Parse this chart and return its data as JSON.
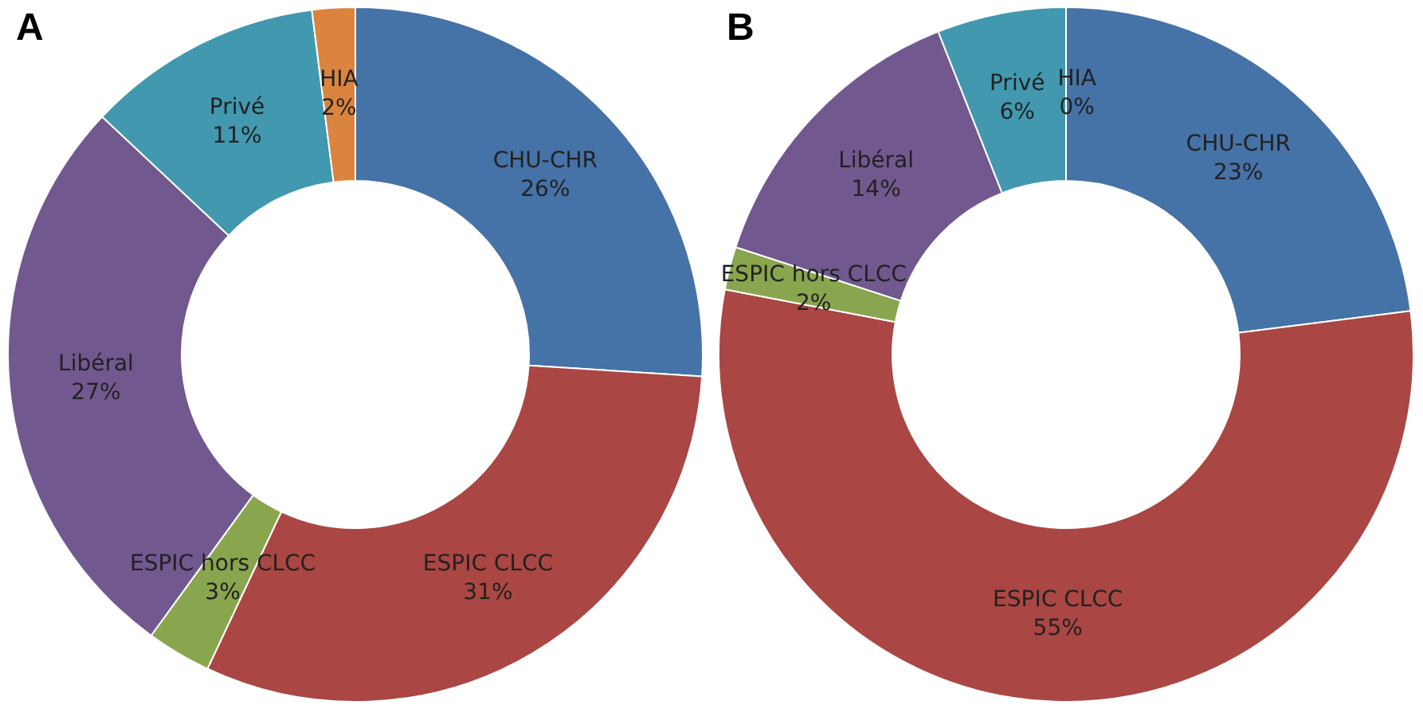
{
  "chart_data": [
    {
      "type": "donut",
      "title": "A",
      "categories": [
        "CHU-CHR",
        "ESPIC CLCC",
        "ESPIC hors CLCC",
        "Libéral",
        "Privé",
        "HIA"
      ],
      "values": [
        26,
        31,
        3,
        27,
        11,
        2
      ],
      "value_labels": [
        "26%",
        "31%",
        "3%",
        "27%",
        "11%",
        "2%"
      ],
      "colors": [
        "#4572a7",
        "#aa4643",
        "#89a54e",
        "#71588f",
        "#4198af",
        "#db843d"
      ],
      "legend": false
    },
    {
      "type": "donut",
      "title": "B",
      "categories": [
        "CHU-CHR",
        "ESPIC CLCC",
        "ESPIC hors CLCC",
        "Libéral",
        "Privé",
        "HIA"
      ],
      "values": [
        23,
        55,
        2,
        14,
        6,
        0
      ],
      "value_labels": [
        "23%",
        "55%",
        "2%",
        "14%",
        "6%",
        "0%"
      ],
      "colors": [
        "#4572a7",
        "#aa4643",
        "#89a54e",
        "#71588f",
        "#4198af",
        "#db843d"
      ],
      "legend": false
    }
  ]
}
